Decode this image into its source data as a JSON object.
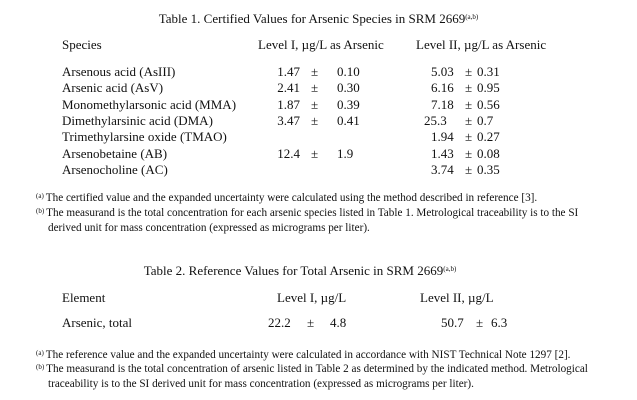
{
  "table1": {
    "title": "Table 1. Certified Values for Arsenic Species in SRM 2669",
    "title_sup": "(a,b)",
    "headers": [
      "Species",
      "Level I, µg/L as Arsenic",
      "Level II, µg/L as Arsenic"
    ],
    "pm": "±",
    "rows": [
      {
        "species": "Arsenous acid (AsIII)",
        "l1": "1.47",
        "l1u": "0.10",
        "l2": "5.03",
        "l2u": "0.31"
      },
      {
        "species": "Arsenic acid (AsV)",
        "l1": "2.41",
        "l1u": "0.30",
        "l2": "6.16",
        "l2u": "0.95"
      },
      {
        "species": "Monomethylarsonic acid (MMA)",
        "l1": "1.87",
        "l1u": "0.39",
        "l2": "7.18",
        "l2u": "0.56"
      },
      {
        "species": "Dimethylarsinic acid (DMA)",
        "l1": "3.47",
        "l1u": "0.41",
        "l2": "25.3",
        "l2u": "0.7"
      },
      {
        "species": "Trimethylarsine oxide (TMAO)",
        "l1": "",
        "l1u": "",
        "l2": "1.94",
        "l2u": "0.27"
      },
      {
        "species": "Arsenobetaine (AB)",
        "l1": "12.4",
        "l1u": "1.9",
        "l2": "1.43",
        "l2u": "0.08"
      },
      {
        "species": "Arsenocholine (AC)",
        "l1": "",
        "l1u": "",
        "l2": "3.74",
        "l2u": "0.35"
      }
    ],
    "footnotes": [
      {
        "mark": "(a)",
        "text": "The certified value and the expanded uncertainty were calculated using the method described in reference [3]."
      },
      {
        "mark": "(b)",
        "text": "The measurand is the total concentration for each arsenic species listed in Table 1.  Metrological traceability is to the SI",
        "text2": "derived unit for mass concentration (expressed as micrograms per liter)."
      }
    ]
  },
  "table2": {
    "title": "Table 2. Reference Values for Total Arsenic in SRM 2669",
    "title_sup": "(a,b)",
    "headers": [
      "Element",
      "Level I, µg/L",
      "Level II, µg/L"
    ],
    "pm": "±",
    "rows": [
      {
        "element": "Arsenic, total",
        "l1": "22.2",
        "l1u": "4.8",
        "l2": "50.7",
        "l2u": "6.3"
      }
    ],
    "footnotes": [
      {
        "mark": "(a)",
        "text": "The reference value and the expanded uncertainty were calculated in accordance with NIST Technical Note 1297 [2]."
      },
      {
        "mark": "(b)",
        "text": "The measurand is the total concentration of arsenic listed in Table 2 as determined by the indicated method.  Metrological",
        "text2": "traceability is to the SI derived unit for mass concentration (expressed as micrograms per liter)."
      }
    ]
  }
}
